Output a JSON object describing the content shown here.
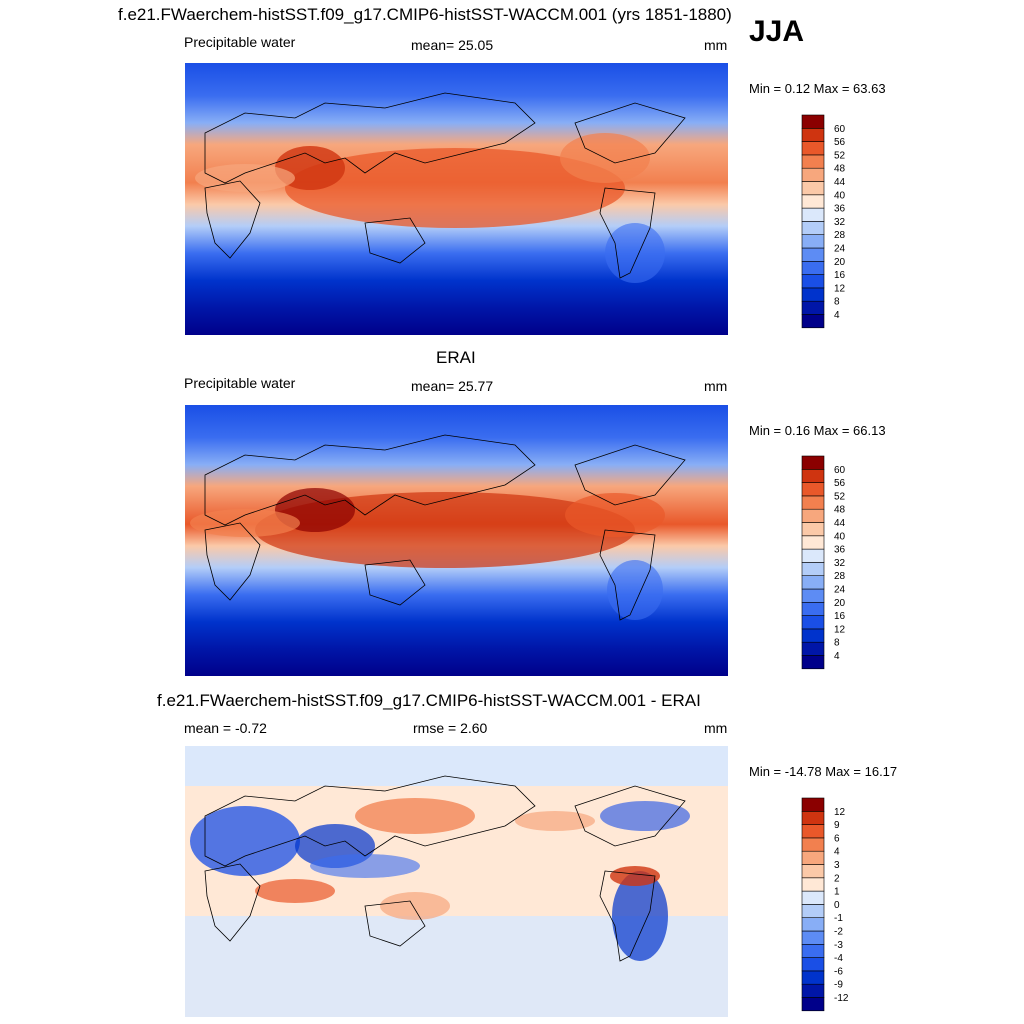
{
  "header": {
    "title": "f.e21.FWaerchem-histSST.f09_g17.CMIP6-histSST-WACCM.001 (yrs 1851-1880)",
    "season": "JJA"
  },
  "panels": [
    {
      "title": "",
      "left_text": "Precipitable water",
      "center_text": "mean=  25.05",
      "right_text": "mm",
      "minmax": "Min =   0.12 Max =  63.63"
    },
    {
      "title": "ERAI",
      "left_text": "Precipitable water",
      "center_text": "mean=  25.77",
      "right_text": "mm",
      "minmax": "Min =   0.16 Max =  66.13"
    },
    {
      "title": "f.e21.FWaerchem-histSST.f09_g17.CMIP6-histSST-WACCM.001 - ERAI",
      "left_text": "mean =  -0.72",
      "center_text": "rmse =   2.60",
      "right_text": "mm",
      "minmax": "Min = -14.78 Max =  16.17"
    }
  ],
  "chart_data": [
    {
      "type": "heatmap",
      "title": "f.e21.FWaerchem-histSST.f09_g17.CMIP6-histSST-WACCM.001 (yrs 1851-1880)",
      "variable": "Precipitable water",
      "units": "mm",
      "season": "JJA",
      "mean": 25.05,
      "min": 0.12,
      "max": 63.63,
      "colorbar_levels": [
        4,
        8,
        12,
        16,
        20,
        24,
        28,
        32,
        36,
        40,
        44,
        48,
        52,
        56,
        60
      ],
      "colorbar_colors": [
        "#00008a",
        "#0016a8",
        "#0033cc",
        "#1a4fe6",
        "#3a6df0",
        "#5d8cf4",
        "#88aef6",
        "#b3cdf8",
        "#dbe8fb",
        "#ffe8d6",
        "#fbc9a8",
        "#f7a77d",
        "#f2804f",
        "#e9582a",
        "#cf3410",
        "#8b0000"
      ]
    },
    {
      "type": "heatmap",
      "title": "ERAI",
      "variable": "Precipitable water",
      "units": "mm",
      "mean": 25.77,
      "min": 0.16,
      "max": 66.13,
      "colorbar_levels": [
        4,
        8,
        12,
        16,
        20,
        24,
        28,
        32,
        36,
        40,
        44,
        48,
        52,
        56,
        60
      ],
      "colorbar_colors": [
        "#00008a",
        "#0016a8",
        "#0033cc",
        "#1a4fe6",
        "#3a6df0",
        "#5d8cf4",
        "#88aef6",
        "#b3cdf8",
        "#dbe8fb",
        "#ffe8d6",
        "#fbc9a8",
        "#f7a77d",
        "#f2804f",
        "#e9582a",
        "#cf3410",
        "#8b0000"
      ]
    },
    {
      "type": "heatmap",
      "title": "f.e21.FWaerchem-histSST.f09_g17.CMIP6-histSST-WACCM.001 - ERAI",
      "units": "mm",
      "mean": -0.72,
      "rmse": 2.6,
      "min": -14.78,
      "max": 16.17,
      "colorbar_levels": [
        -12,
        -9,
        -6,
        -4,
        -3,
        -2,
        -1,
        0,
        1,
        2,
        3,
        4,
        6,
        9,
        12
      ],
      "colorbar_colors": [
        "#00008a",
        "#0016a8",
        "#0033cc",
        "#1a4fe6",
        "#3a6df0",
        "#5d8cf4",
        "#88aef6",
        "#b3cdf8",
        "#dbe8fb",
        "#ffe8d6",
        "#fbc9a8",
        "#f7a77d",
        "#f2804f",
        "#e9582a",
        "#cf3410",
        "#8b0000"
      ]
    }
  ]
}
